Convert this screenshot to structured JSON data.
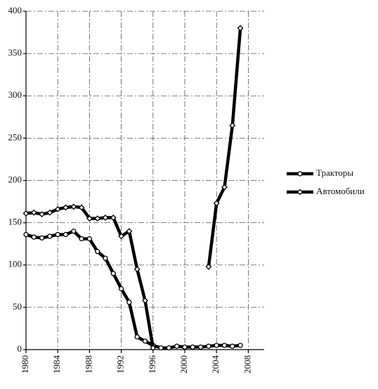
{
  "chart_data": {
    "type": "line",
    "x": [
      1980,
      1981,
      1982,
      1983,
      1984,
      1985,
      1986,
      1987,
      1988,
      1989,
      1990,
      1991,
      1992,
      1993,
      1994,
      1995,
      1996,
      1997,
      1998,
      1999,
      2000,
      2001,
      2002,
      2003,
      2004,
      2005,
      2006,
      2007
    ],
    "series": [
      {
        "name": "Тракторы",
        "color": "#000000",
        "marker": "circle",
        "values": [
          136,
          133,
          132,
          134,
          136,
          136,
          140,
          131,
          131,
          116,
          108,
          90,
          72,
          56,
          15,
          10,
          5,
          2,
          2,
          4,
          3,
          3,
          3,
          4,
          5,
          5,
          4,
          5
        ]
      },
      {
        "name": "Автомобили",
        "color": "#000000",
        "marker": "diamond",
        "values": [
          161,
          162,
          160,
          162,
          166,
          168,
          169,
          168,
          155,
          155,
          156,
          156,
          134,
          140,
          95,
          58,
          2,
          null,
          null,
          null,
          null,
          null,
          null,
          98,
          173,
          192,
          265,
          380
        ]
      }
    ],
    "xlim": [
      1980,
      2010
    ],
    "xticks": [
      1980,
      1984,
      1988,
      1992,
      1996,
      2000,
      2004,
      2008
    ],
    "ylim": [
      0,
      400
    ],
    "yticks": [
      0,
      50,
      100,
      150,
      200,
      250,
      300,
      350,
      400
    ],
    "grid": true,
    "legend": "right"
  }
}
